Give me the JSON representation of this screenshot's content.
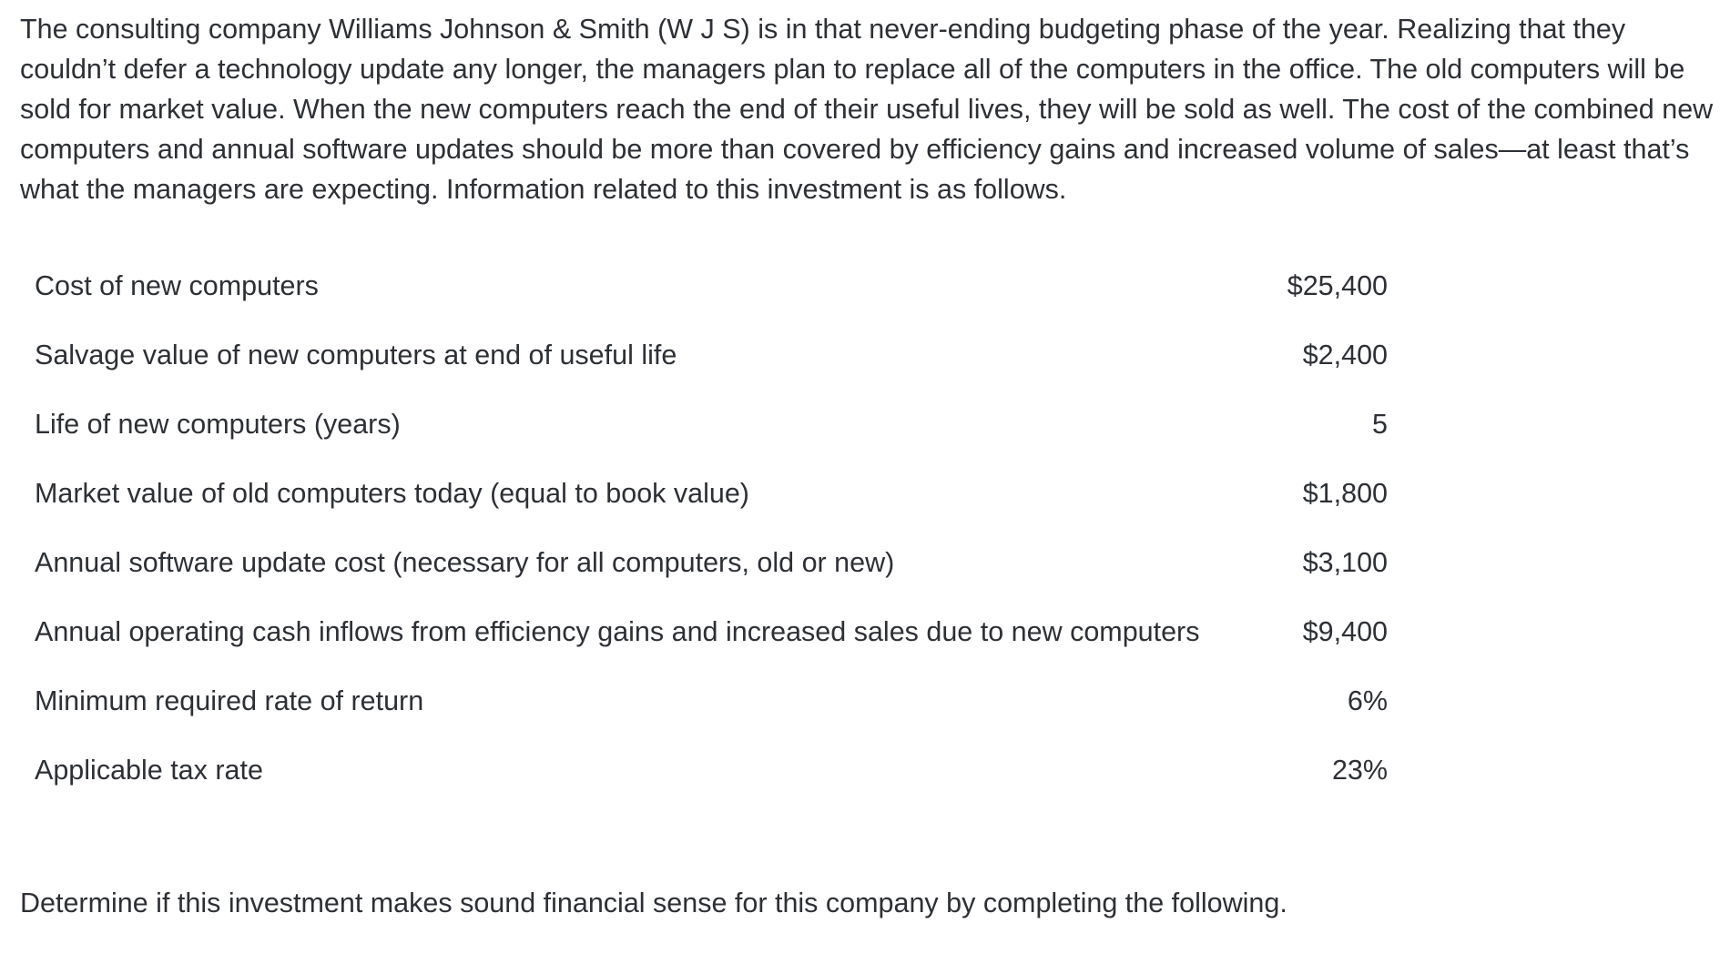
{
  "intro": {
    "text": "The consulting company Williams Johnson & Smith (W J S) is in that never-ending budgeting phase of the year. Realizing that they couldn’t defer a technology update any longer, the managers plan to replace all of the computers in the office. The old computers will be sold for market value. When the new computers reach the end of their useful lives, they will be sold as well. The cost of the combined new computers and annual software updates should be more than covered by efficiency gains and increased volume of sales—at least that’s what the managers are expecting. Information related to this investment is as follows."
  },
  "table": {
    "rows": [
      {
        "label": "Cost of new computers",
        "value": "$25,400"
      },
      {
        "label": "Salvage value of new computers at end of useful life",
        "value": "$2,400"
      },
      {
        "label": "Life of new computers (years)",
        "value": "5"
      },
      {
        "label": "Market value of old computers today (equal to book value)",
        "value": "$1,800"
      },
      {
        "label": "Annual software update cost (necessary for all computers, old or new)",
        "value": "$3,100"
      },
      {
        "label": "Annual operating cash inflows from efficiency gains and increased sales due to new computers",
        "value": "$9,400"
      },
      {
        "label": "Minimum required rate of return",
        "value": "6%"
      },
      {
        "label": "Applicable tax rate",
        "value": "23%"
      }
    ]
  },
  "closing": {
    "text": "Determine if this investment makes sound financial sense for this company by completing the following."
  }
}
